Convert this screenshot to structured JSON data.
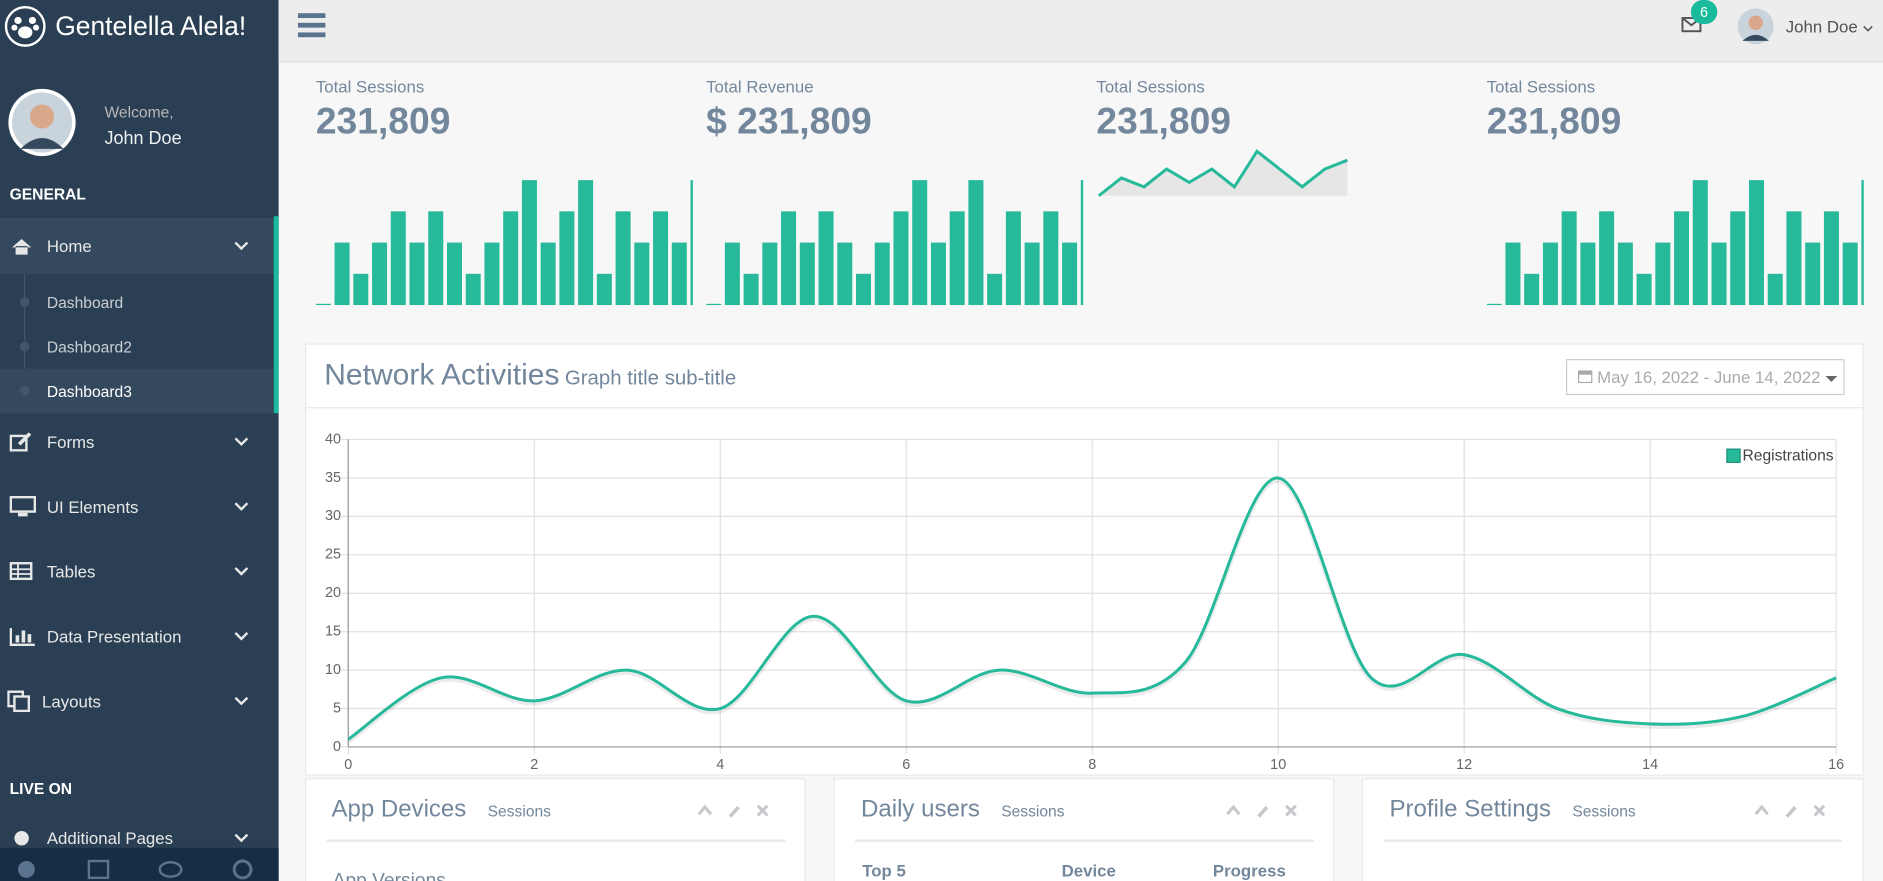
{
  "sidebar": {
    "brand": "Gentelella Alela!",
    "welcome": "Welcome,",
    "user": "John Doe",
    "sections": [
      {
        "title": "GENERAL",
        "items": [
          {
            "label": "Home",
            "children": [
              "Dashboard",
              "Dashboard2",
              "Dashboard3"
            ]
          },
          {
            "label": "Forms"
          },
          {
            "label": "UI Elements"
          },
          {
            "label": "Tables"
          },
          {
            "label": "Data Presentation"
          },
          {
            "label": "Layouts"
          }
        ]
      },
      {
        "title": "LIVE ON",
        "items": [
          {
            "label": "Additional Pages"
          }
        ]
      }
    ]
  },
  "topnav": {
    "notifications": 6,
    "user": "John Doe"
  },
  "tiles": [
    {
      "label": "Total Sessions",
      "value": "231,809",
      "sparkline": {
        "type": "bar",
        "values": [
          0,
          2,
          1,
          2,
          3,
          2,
          3,
          2,
          1,
          2,
          3,
          4,
          2,
          3,
          4,
          1,
          3,
          2,
          3,
          2,
          4
        ]
      }
    },
    {
      "label": "Total Revenue",
      "value": "$ 231,809",
      "sparkline": {
        "type": "bar",
        "values": [
          0,
          2,
          1,
          2,
          3,
          2,
          3,
          2,
          1,
          2,
          3,
          4,
          2,
          3,
          4,
          1,
          3,
          2,
          3,
          2,
          4
        ]
      }
    },
    {
      "label": "Total Sessions",
      "value": "231,809",
      "sparkline": {
        "type": "line",
        "values": [
          0,
          4,
          2,
          6,
          3,
          6,
          2,
          10,
          6,
          2,
          6,
          8
        ]
      }
    },
    {
      "label": "Total Sessions",
      "value": "231,809",
      "sparkline": {
        "type": "bar",
        "values": [
          0,
          2,
          1,
          2,
          3,
          2,
          3,
          2,
          1,
          2,
          3,
          4,
          2,
          3,
          4,
          1,
          3,
          2,
          3,
          2,
          4
        ]
      }
    }
  ],
  "chart_data": {
    "type": "line",
    "title": "Network Activities",
    "subtitle": "Graph title sub-title",
    "date_range": "May 16, 2022 - June 14, 2022",
    "x": [
      0,
      1,
      2,
      3,
      4,
      5,
      6,
      7,
      8,
      9,
      10,
      11,
      12,
      13,
      14,
      15,
      16
    ],
    "series": [
      {
        "name": "Registrations",
        "color": "#26B99A",
        "values": [
          1,
          9,
          6,
          10,
          5,
          17,
          6,
          10,
          7,
          11,
          35,
          9,
          12,
          5,
          3,
          4,
          9
        ]
      }
    ],
    "xlim": [
      0,
      16
    ],
    "ylim": [
      0,
      40
    ],
    "xticks": [
      0,
      2,
      4,
      6,
      8,
      10,
      12,
      14,
      16
    ],
    "yticks": [
      0,
      5,
      10,
      15,
      20,
      25,
      30,
      35,
      40
    ],
    "grid": true,
    "legend": "top-right"
  },
  "panels": [
    {
      "title": "App Devices",
      "subtitle": "Sessions",
      "content": [
        "App Versions"
      ]
    },
    {
      "title": "Daily users",
      "subtitle": "Sessions",
      "columns": [
        "Top 5",
        "Device",
        "Progress"
      ]
    },
    {
      "title": "Profile Settings",
      "subtitle": "Sessions"
    }
  ]
}
